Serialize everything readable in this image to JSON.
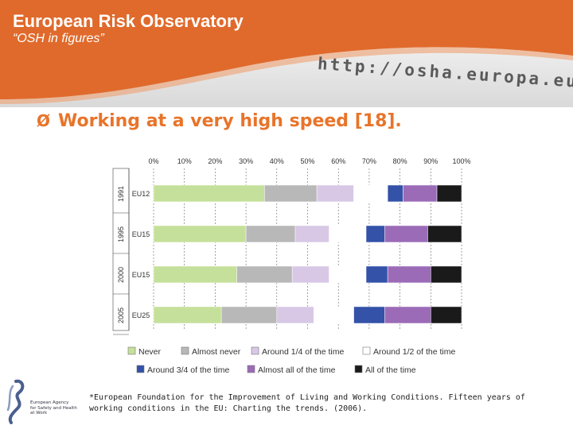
{
  "header": {
    "title": "European Risk Observatory",
    "subtitle": "“OSH in figures”",
    "url": "http://osha.europa.eu",
    "bar_color": "#e06a2c"
  },
  "slide": {
    "heading": "Working at a very high speed [18].",
    "bullet": "Ø"
  },
  "chart_data": {
    "type": "bar",
    "orientation": "horizontal",
    "stacked": "100%",
    "x_ticks": [
      "0%",
      "10%",
      "20%",
      "30%",
      "40%",
      "50%",
      "60%",
      "70%",
      "80%",
      "90%",
      "100%"
    ],
    "xlim": [
      0,
      100
    ],
    "rows": [
      {
        "year": "1991",
        "label": "EU12"
      },
      {
        "year": "1995",
        "label": "EU15"
      },
      {
        "year": "2000",
        "label": "EU15"
      },
      {
        "year": "2005",
        "label": "EU25"
      }
    ],
    "series": [
      {
        "name": "Never",
        "color": "#c5e09a",
        "values": [
          36,
          30,
          27,
          22
        ]
      },
      {
        "name": "Almost never",
        "color": "#b8b8b8",
        "values": [
          17,
          16,
          18,
          18
        ]
      },
      {
        "name": "Around 1/4 of the time",
        "color": "#d8c8e6",
        "values": [
          12,
          11,
          12,
          12
        ]
      },
      {
        "name": "Around 1/2 of the time",
        "color": "#ffffff",
        "values": [
          11,
          12,
          12,
          13
        ]
      },
      {
        "name": "Around 3/4 of the time",
        "color": "#3352a8",
        "values": [
          5,
          6,
          7,
          10
        ]
      },
      {
        "name": "Almost all of the time",
        "color": "#9b6bb8",
        "values": [
          11,
          14,
          14,
          15
        ]
      },
      {
        "name": "All of the time",
        "color": "#1a1a1a",
        "values": [
          8,
          11,
          10,
          10
        ]
      }
    ],
    "legend_placement": "bottom",
    "grid": true
  },
  "logo": {
    "text_lines": [
      "European Agency",
      "for Safety and Health",
      "at Work"
    ]
  },
  "footnote": "*European Foundation for the Improvement of Living and Working Conditions. Fifteen years of working conditions in the EU: Charting the trends. (2006)."
}
